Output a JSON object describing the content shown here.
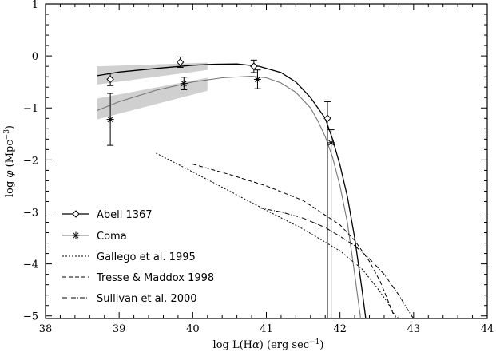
{
  "chart_data": {
    "type": "line",
    "xlabel": {
      "prefix": "log L(H",
      "greek": "α",
      "suffix": ") (erg sec",
      "sup": "−1",
      "close": ")"
    },
    "ylabel": {
      "prefix": "log ",
      "greek": "φ",
      "middle": " (Mpc",
      "sup": "−3",
      "close": ")"
    },
    "xlim": [
      38,
      44
    ],
    "ylim": [
      -5.05,
      1
    ],
    "xticks": [
      38,
      39,
      40,
      41,
      42,
      43,
      44
    ],
    "yticks": [
      1,
      0,
      -1,
      -2,
      -3,
      -4,
      -5
    ],
    "xtick_labels": [
      "38",
      "39",
      "40",
      "41",
      "42",
      "43",
      "44"
    ],
    "ytick_labels": [
      "1",
      "0",
      "−1",
      "−2",
      "−3",
      "−4",
      "−5"
    ],
    "legend_position": "bottom-left",
    "bands": [
      {
        "series": "Abell 1367",
        "x": [
          38.7,
          40.2
        ],
        "upper": [
          -0.2,
          -0.13
        ],
        "lower": [
          -0.55,
          -0.27
        ]
      },
      {
        "series": "Coma",
        "x": [
          38.7,
          40.2
        ],
        "upper": [
          -0.82,
          -0.42
        ],
        "lower": [
          -1.22,
          -0.67
        ]
      }
    ],
    "series": [
      {
        "name": "Abell 1367",
        "style": "solid",
        "marker": "diamond",
        "color": "#000000",
        "curve": {
          "x": [
            38.7,
            39.0,
            39.5,
            40.0,
            40.3,
            40.6,
            40.9,
            41.2,
            41.4,
            41.6,
            41.8,
            41.9,
            42.0,
            42.1,
            42.2,
            42.3,
            42.35
          ],
          "y": [
            -0.38,
            -0.31,
            -0.24,
            -0.18,
            -0.16,
            -0.155,
            -0.2,
            -0.32,
            -0.5,
            -0.8,
            -1.2,
            -1.6,
            -2.1,
            -2.7,
            -3.5,
            -4.5,
            -5.05
          ]
        },
        "points": [
          {
            "x": 38.88,
            "y": -0.45,
            "err": [
              0.12,
              0.12
            ]
          },
          {
            "x": 39.83,
            "y": -0.12,
            "err": [
              0.1,
              0.1
            ]
          },
          {
            "x": 40.83,
            "y": -0.2,
            "err": [
              0.12,
              0.12
            ]
          },
          {
            "x": 41.83,
            "y": -1.2,
            "err": [
              0.32,
              4.0
            ]
          }
        ]
      },
      {
        "name": "Coma",
        "style": "gray-solid",
        "marker": "asterisk",
        "color": "#777777",
        "curve": {
          "x": [
            38.7,
            39.0,
            39.5,
            40.0,
            40.4,
            40.8,
            41.0,
            41.2,
            41.4,
            41.6,
            41.7,
            41.8,
            41.9,
            42.0,
            42.1,
            42.2,
            42.28
          ],
          "y": [
            -1.05,
            -0.88,
            -0.66,
            -0.5,
            -0.42,
            -0.39,
            -0.42,
            -0.52,
            -0.7,
            -1.0,
            -1.25,
            -1.55,
            -1.95,
            -2.5,
            -3.2,
            -4.2,
            -5.05
          ]
        },
        "points": [
          {
            "x": 38.88,
            "y": -1.22,
            "err": [
              0.5,
              0.5
            ]
          },
          {
            "x": 39.88,
            "y": -0.53,
            "err": [
              0.12,
              0.12
            ]
          },
          {
            "x": 40.88,
            "y": -0.45,
            "err": [
              0.18,
              0.18
            ]
          },
          {
            "x": 41.88,
            "y": -1.67,
            "err": [
              0.25,
              3.4
            ]
          }
        ]
      },
      {
        "name": "Gallego et al. 1995",
        "style": "dotted",
        "color": "#000000",
        "curve": {
          "x": [
            39.5,
            40.0,
            40.5,
            41.0,
            41.5,
            42.0,
            42.3,
            42.5,
            42.65,
            42.75,
            42.8
          ],
          "y": [
            -1.87,
            -2.23,
            -2.6,
            -2.97,
            -3.33,
            -3.75,
            -4.1,
            -4.45,
            -4.75,
            -5.0,
            -5.05
          ]
        }
      },
      {
        "name": "Tresse & Maddox 1998",
        "style": "dashed",
        "color": "#000000",
        "curve": {
          "x": [
            40.0,
            40.5,
            41.0,
            41.5,
            42.0,
            42.2,
            42.4,
            42.55,
            42.65,
            42.72,
            42.76
          ],
          "y": [
            -2.08,
            -2.28,
            -2.5,
            -2.78,
            -3.25,
            -3.55,
            -3.95,
            -4.35,
            -4.7,
            -4.95,
            -5.05
          ]
        }
      },
      {
        "name": "Sullivan et al. 2000",
        "style": "dash-dot",
        "color": "#000000",
        "curve": {
          "x": [
            40.9,
            41.2,
            41.5,
            41.8,
            42.0,
            42.2,
            42.4,
            42.6,
            42.8,
            42.95,
            43.0
          ],
          "y": [
            -2.92,
            -3.0,
            -3.12,
            -3.3,
            -3.47,
            -3.65,
            -3.9,
            -4.2,
            -4.6,
            -4.95,
            -5.05
          ]
        }
      }
    ]
  }
}
